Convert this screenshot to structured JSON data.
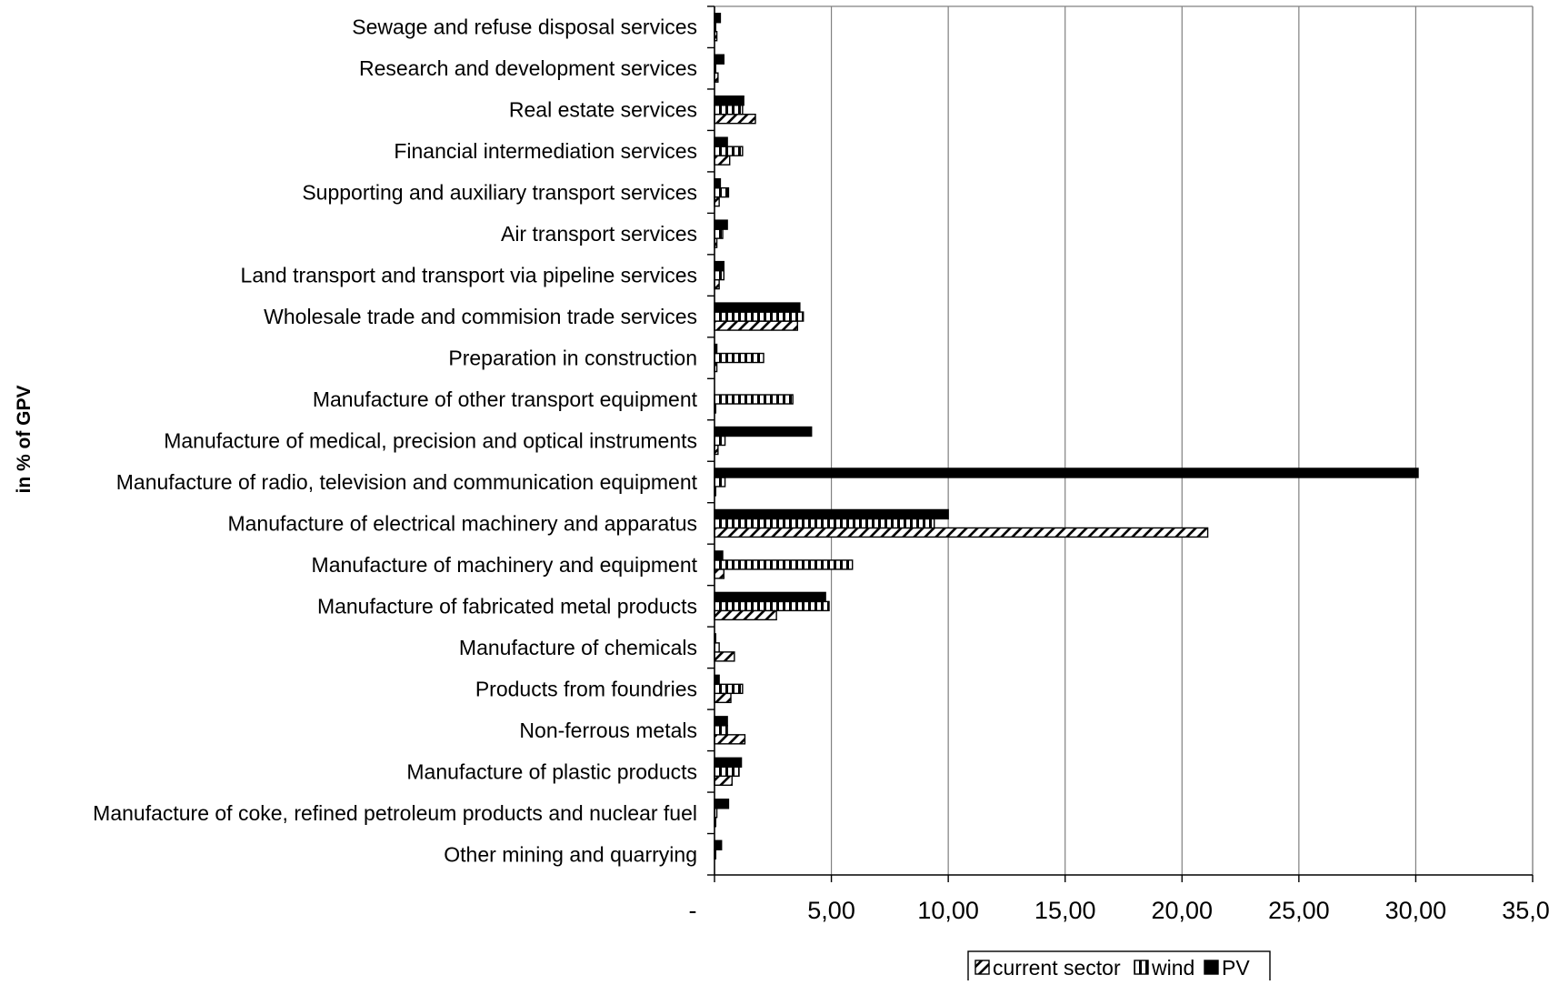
{
  "chart_data": {
    "type": "bar",
    "orientation": "horizontal",
    "title": "",
    "xlabel": "",
    "ylabel": "in % of GPV",
    "xlim": [
      0,
      35
    ],
    "x_ticks": [
      0,
      5,
      10,
      15,
      20,
      25,
      30,
      35
    ],
    "x_tick_labels": [
      "-",
      "5,00",
      "10,00",
      "15,00",
      "20,00",
      "25,00",
      "30,00",
      "35,00"
    ],
    "grid": "vertical",
    "legend_position": "bottom",
    "categories": [
      "Other mining and quarrying",
      "Manufacture of coke, refined petroleum products and nuclear fuel",
      "Manufacture of plastic products",
      "Non-ferrous metals ",
      "Products from foundries",
      "Manufacture of chemicals ",
      "Manufacture of fabricated metal products",
      "Manufacture of machinery and equipment",
      "Manufacture of electrical machinery and apparatus",
      "Manufacture of radio, television and communication equipment",
      "Manufacture of medical, precision and optical instruments",
      "Manufacture of other transport equipment",
      "Preparation in construction",
      "Wholesale trade and commision trade services",
      "Land transport and transport via pipeline services",
      "Air transport services",
      "Supporting and auxiliary transport services",
      "Financial intermediation services",
      "Real estate services",
      "Research and development services",
      "Sewage and refuse disposal services"
    ],
    "series": [
      {
        "name": "current sector",
        "pattern": "diagonal",
        "values": [
          0.0,
          0.05,
          0.75,
          1.3,
          0.7,
          0.85,
          2.65,
          0.4,
          21.1,
          0.05,
          0.15,
          0.05,
          0.1,
          3.55,
          0.2,
          0.1,
          0.2,
          0.65,
          1.75,
          0.15,
          0.1
        ]
      },
      {
        "name": "wind",
        "pattern": "vertical",
        "values": [
          0.05,
          0.1,
          1.05,
          0.55,
          1.2,
          0.2,
          4.9,
          5.9,
          9.4,
          0.45,
          0.45,
          3.35,
          2.1,
          3.8,
          0.4,
          0.35,
          0.6,
          1.2,
          1.2,
          0.05,
          0.05
        ]
      },
      {
        "name": "PV",
        "pattern": "solid",
        "values": [
          0.3,
          0.6,
          1.15,
          0.55,
          0.2,
          0.05,
          4.75,
          0.35,
          10.0,
          30.1,
          4.15,
          0.0,
          0.1,
          3.65,
          0.4,
          0.55,
          0.25,
          0.55,
          1.25,
          0.4,
          0.25
        ]
      }
    ]
  }
}
